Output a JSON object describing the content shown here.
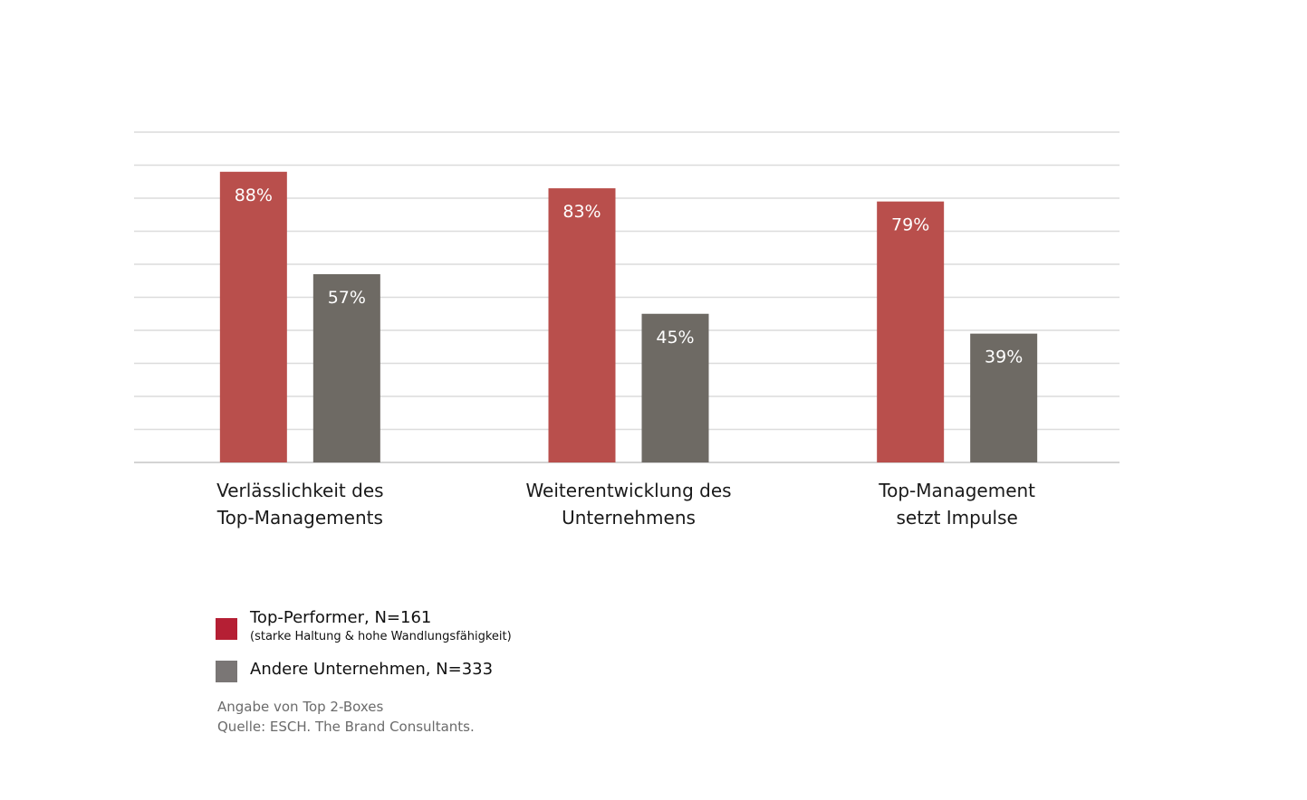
{
  "chart_data": {
    "type": "bar",
    "categories": [
      [
        "Verlässlichkeit des",
        "Top-Managements"
      ],
      [
        "Weiterentwicklung des",
        "Unternehmens"
      ],
      [
        "Top-Management",
        "setzt Impulse"
      ]
    ],
    "series": [
      {
        "name": "Top-Performer, N=161",
        "color": "#b94f4c",
        "values": [
          88,
          83,
          79
        ],
        "labels": [
          "88%",
          "83%",
          "79%"
        ]
      },
      {
        "name": "Andere Unternehmen, N=333",
        "color": "#6e6a64",
        "values": [
          57,
          45,
          39
        ],
        "labels": [
          "57%",
          "45%",
          "39%"
        ]
      }
    ],
    "ylim": [
      0,
      100
    ],
    "grid": true,
    "legend_position": "bottom-left"
  },
  "legend": {
    "items": [
      {
        "label": "Top-Performer, N=161",
        "sublabel": "(starke Haltung & hohe Wandlungsfähigkeit)",
        "color": "#b51f34"
      },
      {
        "label": "Andere Unternehmen, N=333",
        "sublabel": "",
        "color": "#7a7675"
      }
    ]
  },
  "notes": {
    "line1": "Angabe von Top 2-Boxes",
    "line2": "Quelle: ESCH. The Brand Consultants."
  }
}
